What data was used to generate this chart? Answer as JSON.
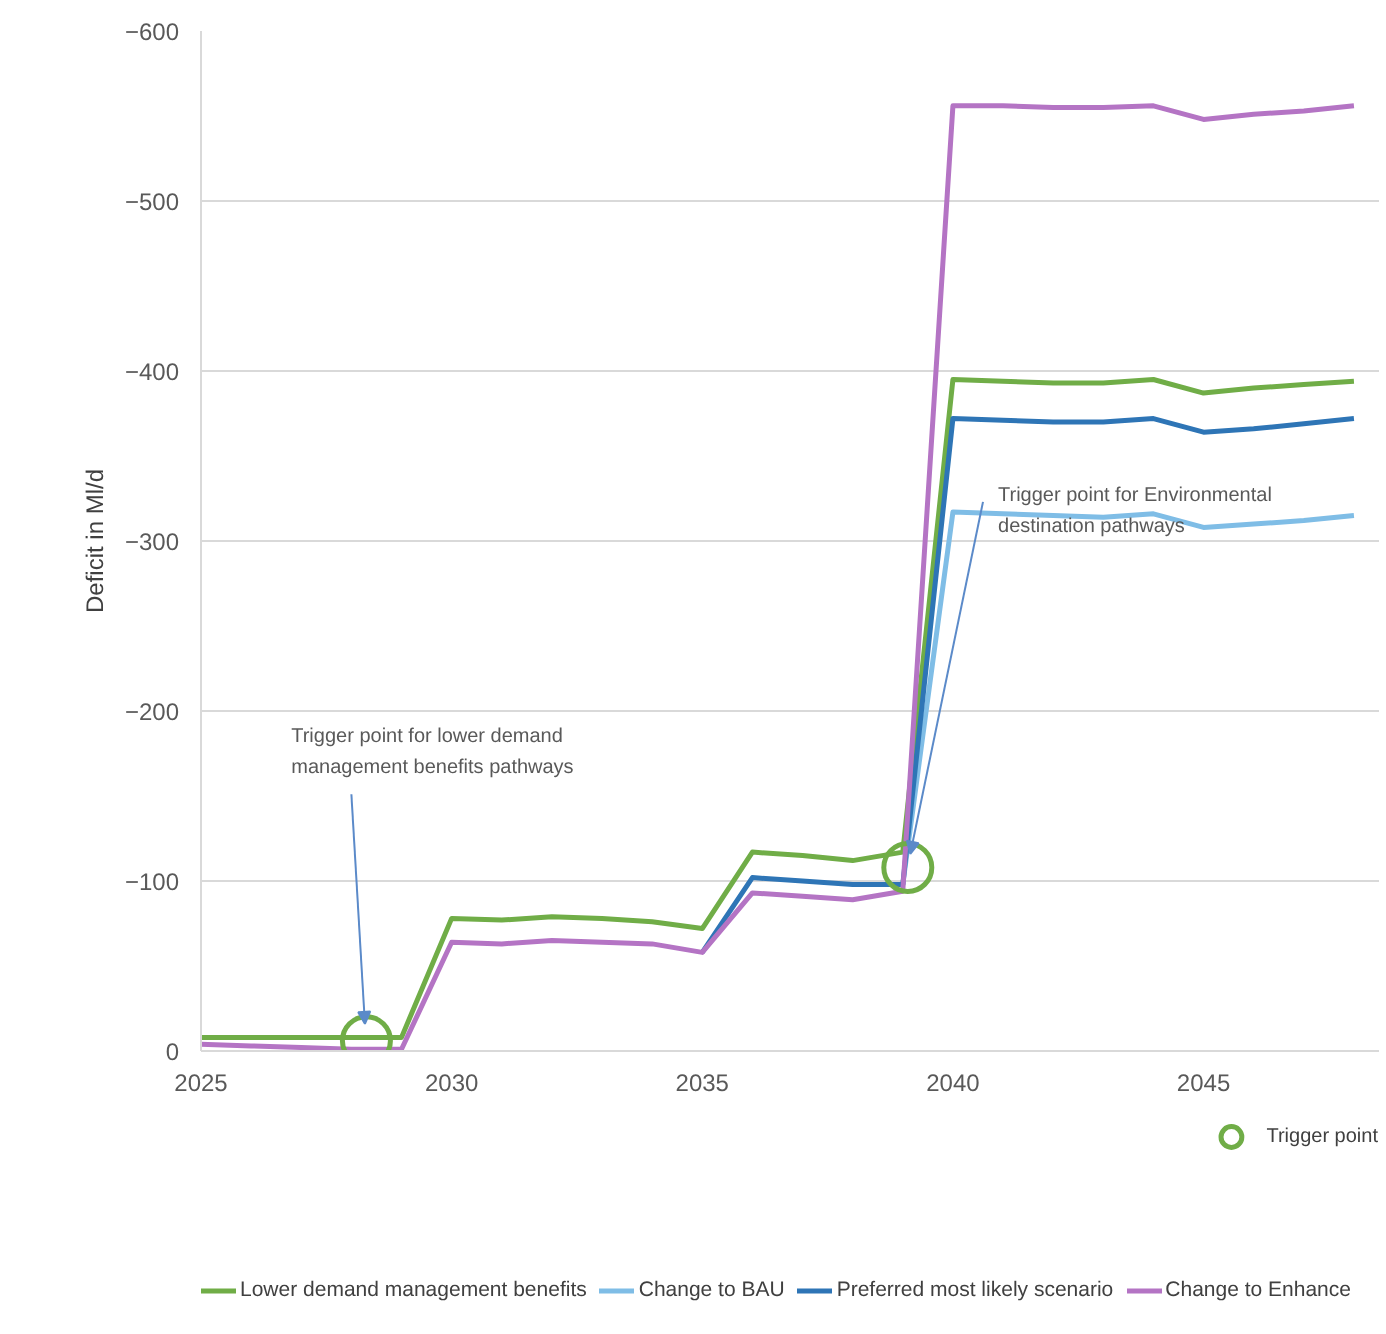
{
  "chart_data": {
    "type": "line",
    "ylabel": "Deficit in Ml/d",
    "x": [
      2025,
      2026,
      2027,
      2028,
      2029,
      2030,
      2031,
      2032,
      2033,
      2034,
      2035,
      2036,
      2037,
      2038,
      2039,
      2040,
      2041,
      2042,
      2043,
      2044,
      2045,
      2046,
      2047,
      2048
    ],
    "xlim": [
      2025,
      2048.5
    ],
    "xticks": [
      2025,
      2030,
      2035,
      2040,
      2045
    ],
    "ylim": [
      0,
      -600
    ],
    "yticks": [
      0,
      -100,
      -200,
      -300,
      -400,
      -500,
      -600
    ],
    "grid": "y",
    "legend": "bottom",
    "line_style": "solid",
    "series": [
      {
        "name": "Lower demand management benefits",
        "color": "#70ad47",
        "values": [
          -8,
          -8,
          -8,
          -8,
          -8,
          -78,
          -77,
          -79,
          -78,
          -76,
          -72,
          -117,
          -115,
          -112,
          -117,
          -395,
          -394,
          -393,
          -393,
          -395,
          -387,
          -390,
          -392,
          -394
        ]
      },
      {
        "name": "Change to BAU",
        "color": "#7fbde6",
        "values": [
          null,
          null,
          null,
          null,
          null,
          null,
          null,
          null,
          null,
          null,
          null,
          null,
          null,
          null,
          -98,
          -317,
          -316,
          -315,
          -314,
          -316,
          -308,
          -310,
          -312,
          -315
        ]
      },
      {
        "name": "Preferred most likely scenario",
        "color": "#2e75b6",
        "values": [
          null,
          null,
          null,
          null,
          null,
          null,
          null,
          null,
          null,
          null,
          -58,
          -102,
          -100,
          -98,
          -98,
          -372,
          -371,
          -370,
          -370,
          -372,
          -364,
          -366,
          -369,
          -372
        ]
      },
      {
        "name": "Change to Enhance",
        "color": "#b474c4",
        "values": [
          -4,
          -3,
          -2,
          -1,
          -1,
          -64,
          -63,
          -65,
          -64,
          -63,
          -58,
          -93,
          -91,
          -89,
          -94,
          -556,
          -556,
          -555,
          -555,
          -556,
          -548,
          -551,
          -553,
          -556
        ]
      },
      {
        "name": "Trigger point",
        "type": "scatter",
        "marker": "circle",
        "color": "#70ad47",
        "x": [
          2028.3,
          2039.1
        ],
        "values": [
          -6,
          -108
        ]
      }
    ],
    "annotations": [
      {
        "text": "Trigger point  for lower demand management benefits pathways",
        "x": 2028.3,
        "y": -6
      },
      {
        "text": "Trigger point  for Environmental destination pathways",
        "x": 2039.1,
        "y": -108
      }
    ]
  }
}
